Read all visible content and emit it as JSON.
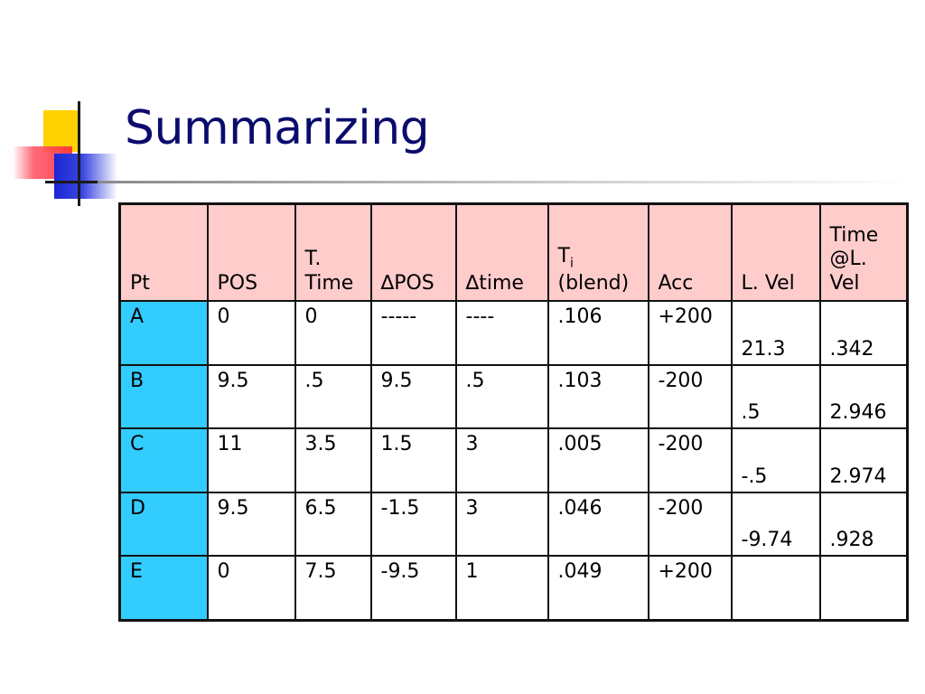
{
  "slide": {
    "title": "Summarizing"
  },
  "table": {
    "headers": {
      "pt": "Pt",
      "pos": "POS",
      "ttime": [
        "T.",
        "Time"
      ],
      "dpos": "∆POS",
      "dtime": "∆time",
      "ti_main": "T",
      "ti_sub": "i",
      "ti_blend": "(blend)",
      "acc": "Acc",
      "lvel": "L. Vel",
      "timelvel": [
        "Time",
        "@L.",
        "Vel"
      ]
    },
    "rows": [
      [
        "A",
        "0",
        "0",
        "-----",
        "----",
        ".106",
        "+200",
        "21.3",
        ".342"
      ],
      [
        "B",
        "9.5",
        ".5",
        "9.5",
        ".5",
        ".103",
        "-200",
        ".5",
        "2.946"
      ],
      [
        "C",
        "11",
        "3.5",
        "1.5",
        "3",
        ".005",
        "-200",
        "-.5",
        "2.974"
      ],
      [
        "D",
        "9.5",
        "6.5",
        "-1.5",
        "3",
        ".046",
        "-200",
        "-9.74",
        ".928"
      ],
      [
        "E",
        "0",
        "7.5",
        "-9.5",
        "1",
        ".049",
        "+200",
        "",
        ""
      ]
    ]
  },
  "colors": {
    "title": "#0b0b6e",
    "header_bg": "#ffcccc",
    "pt_column_bg": "#33ccff",
    "border": "#111111"
  }
}
